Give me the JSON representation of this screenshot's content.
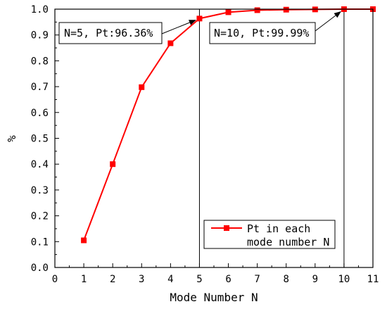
{
  "chart_data": {
    "type": "line",
    "title": "",
    "xlabel": "Mode Number N",
    "ylabel": "%",
    "xlim": [
      0,
      11
    ],
    "ylim": [
      0.0,
      1.0
    ],
    "xticks": [
      "0",
      "1",
      "2",
      "3",
      "4",
      "5",
      "6",
      "7",
      "8",
      "9",
      "10",
      "11"
    ],
    "yticks": [
      "0.0",
      "0.1",
      "0.2",
      "0.3",
      "0.4",
      "0.5",
      "0.6",
      "0.7",
      "0.8",
      "0.9",
      "1.0"
    ],
    "grid": false,
    "legend_position": "bottom-right",
    "series": [
      {
        "name": "Pt in each mode number N",
        "legend_lines": [
          "Pt in each",
          "mode number N"
        ],
        "color": "#ff0000",
        "marker": "square",
        "x": [
          1,
          2,
          3,
          4,
          5,
          6,
          7,
          8,
          9,
          10,
          11
        ],
        "y": [
          0.105,
          0.4,
          0.698,
          0.868,
          0.9636,
          0.988,
          0.996,
          0.998,
          0.999,
          0.9999,
          1.0
        ]
      }
    ],
    "reference_lines": [
      {
        "x": 5
      },
      {
        "x": 10
      }
    ],
    "annotations": [
      {
        "text": "N=5, Pt:96.36%",
        "target": {
          "x": 5,
          "y": 0.9636
        }
      },
      {
        "text": "N=10, Pt:99.99%",
        "target": {
          "x": 10,
          "y": 0.9999
        }
      }
    ]
  }
}
